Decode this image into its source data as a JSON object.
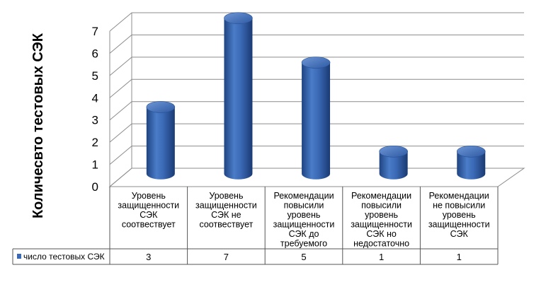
{
  "chart_data": {
    "type": "bar",
    "style": "3d-cylinder",
    "categories": [
      "Уровень защищенности СЭК соотвествует",
      "Уровень защищенности СЭК  не соотвествует",
      "Рекомендации повысили уровень защищенности СЭК до требуемого",
      "Рекомендации повысили уровень защищенности СЭК но недостаточно",
      "Рекомендации не повысили уровень защищенности СЭК"
    ],
    "category_lines": [
      [
        "Уровень",
        "защищенности",
        "СЭК",
        "соотвествует"
      ],
      [
        "Уровень",
        "защищенности",
        "СЭК  не",
        "соотвествует"
      ],
      [
        "Рекомендации",
        "повысили",
        "уровень",
        "защищенности",
        "СЭК до",
        "требуемого"
      ],
      [
        "Рекомендации",
        "повысили",
        "уровень",
        "защищенности",
        "СЭК но",
        "недостаточно"
      ],
      [
        "Рекомендации",
        "не повысили",
        "уровень",
        "защищенности",
        "СЭК"
      ]
    ],
    "series": [
      {
        "name": "число тестовых СЭК",
        "values": [
          3,
          7,
          5,
          1,
          1
        ],
        "color": "#3a68b4"
      }
    ],
    "value_labels": [
      "3",
      "7",
      "5",
      "1",
      "1"
    ],
    "ylabel": "Количесвто тестовых СЭК",
    "ylim": [
      0,
      7
    ],
    "yticks": [
      0,
      1,
      2,
      3,
      4,
      5,
      6,
      7
    ],
    "ytick_labels": [
      "0",
      "1",
      "2",
      "3",
      "4",
      "5",
      "6",
      "7"
    ],
    "grid": true,
    "legend_placement": "data-table-left",
    "colors": {
      "bar": "#3a68b4",
      "bar_dark": "#1d3f7a",
      "bar_light": "#6f97d6",
      "grid": "#8c8c8c",
      "axis": "#555555"
    }
  }
}
